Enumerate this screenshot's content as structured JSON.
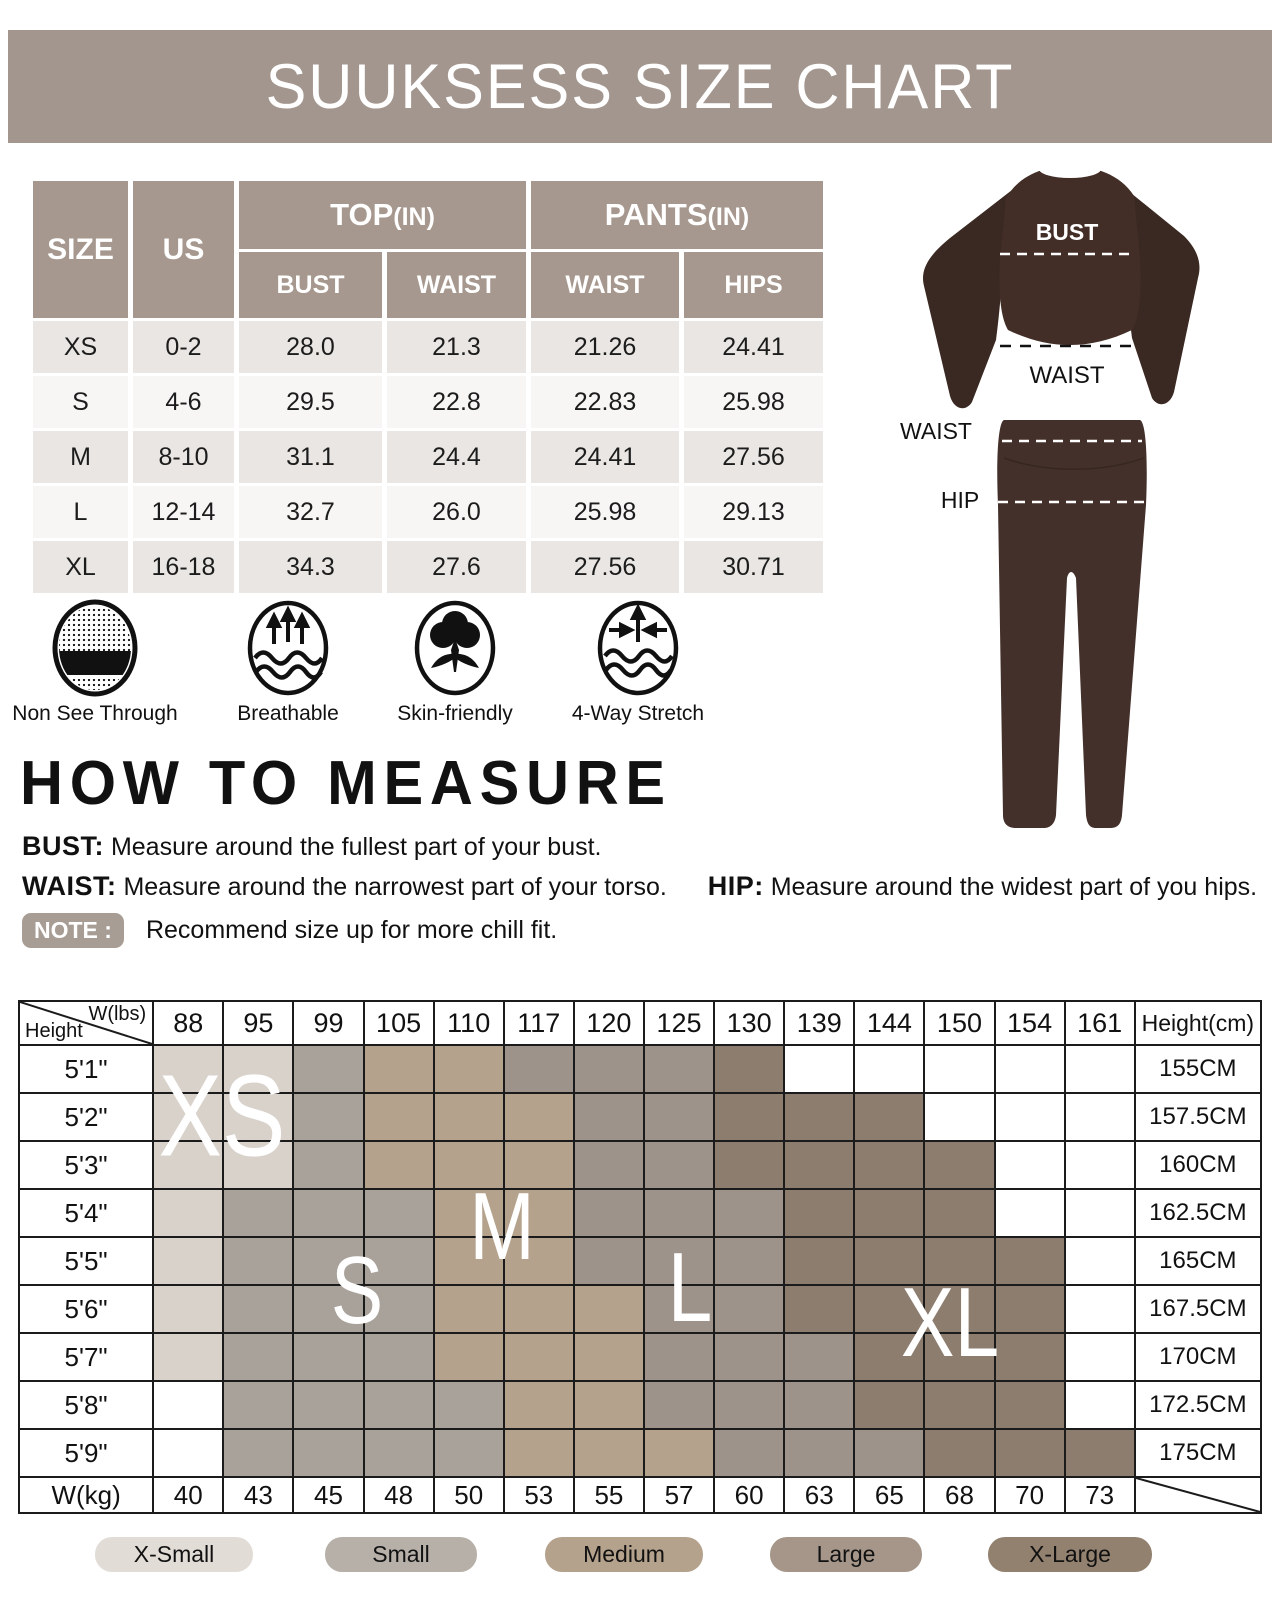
{
  "banner": {
    "title": "SUUKSESS SIZE CHART"
  },
  "size_table": {
    "col_size": "SIZE",
    "col_us": "US",
    "top_group": "TOP",
    "pants_group": "PANTS",
    "unit": "(IN)",
    "subheaders": [
      "BUST",
      "WAIST",
      "WAIST",
      "HIPS"
    ],
    "rows": [
      {
        "size": "XS",
        "us": "0-2",
        "top_bust": "28.0",
        "top_waist": "21.3",
        "pants_waist": "21.26",
        "pants_hips": "24.41"
      },
      {
        "size": "S",
        "us": "4-6",
        "top_bust": "29.5",
        "top_waist": "22.8",
        "pants_waist": "22.83",
        "pants_hips": "25.98"
      },
      {
        "size": "M",
        "us": "8-10",
        "top_bust": "31.1",
        "top_waist": "24.4",
        "pants_waist": "24.41",
        "pants_hips": "27.56"
      },
      {
        "size": "L",
        "us": "12-14",
        "top_bust": "32.7",
        "top_waist": "26.0",
        "pants_waist": "25.98",
        "pants_hips": "29.13"
      },
      {
        "size": "XL",
        "us": "16-18",
        "top_bust": "34.3",
        "top_waist": "27.6",
        "pants_waist": "27.56",
        "pants_hips": "30.71"
      }
    ]
  },
  "diagram": {
    "bust_label": "BUST",
    "top_waist_label": "WAIST",
    "pants_waist_label": "WAIST",
    "hip_label": "HIP",
    "garment_color": "#422e27"
  },
  "features": [
    {
      "icon": "non-see-through-icon",
      "label": "Non See Through"
    },
    {
      "icon": "breathable-icon",
      "label": "Breathable"
    },
    {
      "icon": "skin-friendly-icon",
      "label": "Skin-friendly"
    },
    {
      "icon": "four-way-stretch-icon",
      "label": "4-Way Stretch"
    }
  ],
  "how_to_measure": {
    "title": "HOW TO MEASURE",
    "bust_term": "BUST:",
    "bust_text": "Measure around the fullest part of your bust.",
    "waist_term": "WAIST:",
    "waist_text": "Measure around the narrowest part of your torso.",
    "hip_term": "HIP:",
    "hip_text": "Measure around the widest part of you hips.",
    "note_label": "NOTE :",
    "note_text": "Recommend size up for more chill fit."
  },
  "matrix": {
    "corner_top": "W(lbs)",
    "corner_bottom": "Height",
    "height_cm_header": "Height(cm)",
    "weights_lbs": [
      "88",
      "95",
      "99",
      "105",
      "110",
      "117",
      "120",
      "125",
      "130",
      "139",
      "144",
      "150",
      "154",
      "161"
    ],
    "rows": [
      {
        "height": "5'1\"",
        "cm": "155CM",
        "cells": [
          "xs",
          "xs",
          "s",
          "m",
          "m",
          "l",
          "l",
          "l",
          "xl",
          "",
          "",
          "",
          "",
          ""
        ]
      },
      {
        "height": "5'2\"",
        "cm": "157.5CM",
        "cells": [
          "xs",
          "xs",
          "s",
          "m",
          "m",
          "m",
          "l",
          "l",
          "xl",
          "xl",
          "xl",
          "",
          "",
          ""
        ]
      },
      {
        "height": "5'3\"",
        "cm": "160CM",
        "cells": [
          "xs",
          "xs",
          "s",
          "m",
          "m",
          "m",
          "l",
          "l",
          "xl",
          "xl",
          "xl",
          "xl",
          "",
          ""
        ]
      },
      {
        "height": "5'4\"",
        "cm": "162.5CM",
        "cells": [
          "xs",
          "s",
          "s",
          "s",
          "m",
          "m",
          "l",
          "l",
          "l",
          "xl",
          "xl",
          "xl",
          "",
          ""
        ]
      },
      {
        "height": "5'5\"",
        "cm": "165CM",
        "cells": [
          "xs",
          "s",
          "s",
          "s",
          "m",
          "m",
          "l",
          "l",
          "l",
          "xl",
          "xl",
          "xl",
          "xl",
          ""
        ]
      },
      {
        "height": "5'6\"",
        "cm": "167.5CM",
        "cells": [
          "xs",
          "s",
          "s",
          "s",
          "m",
          "m",
          "m",
          "l",
          "l",
          "xl",
          "xl",
          "xl",
          "xl",
          ""
        ]
      },
      {
        "height": "5'7\"",
        "cm": "170CM",
        "cells": [
          "xs",
          "s",
          "s",
          "s",
          "m",
          "m",
          "m",
          "l",
          "l",
          "l",
          "xl",
          "xl",
          "xl",
          ""
        ]
      },
      {
        "height": "5'8\"",
        "cm": "172.5CM",
        "cells": [
          "",
          "s",
          "s",
          "s",
          "s",
          "m",
          "m",
          "l",
          "l",
          "l",
          "xl",
          "xl",
          "xl",
          ""
        ]
      },
      {
        "height": "5'9\"",
        "cm": "175CM",
        "cells": [
          "",
          "s",
          "s",
          "s",
          "s",
          "m",
          "m",
          "m",
          "l",
          "l",
          "l",
          "xl",
          "xl",
          "xl"
        ]
      }
    ],
    "wkg_label": "W(kg)",
    "weights_kg": [
      "40",
      "43",
      "45",
      "48",
      "50",
      "53",
      "55",
      "57",
      "60",
      "63",
      "65",
      "68",
      "70",
      "73"
    ],
    "size_letters": [
      "XS",
      "S",
      "M",
      "L",
      "XL"
    ],
    "zone_colors": {
      "xs": "#d8d2cb",
      "s": "#a9a29b",
      "m": "#b4a28d",
      "l": "#9d938a",
      "xl": "#8c7d6f"
    }
  },
  "legend": [
    {
      "label": "X-Small",
      "color": "#e1dcd6"
    },
    {
      "label": "Small",
      "color": "#b6b0a9"
    },
    {
      "label": "Medium",
      "color": "#b5a28c"
    },
    {
      "label": "Large",
      "color": "#a59689"
    },
    {
      "label": "X-Large",
      "color": "#92816f"
    }
  ]
}
